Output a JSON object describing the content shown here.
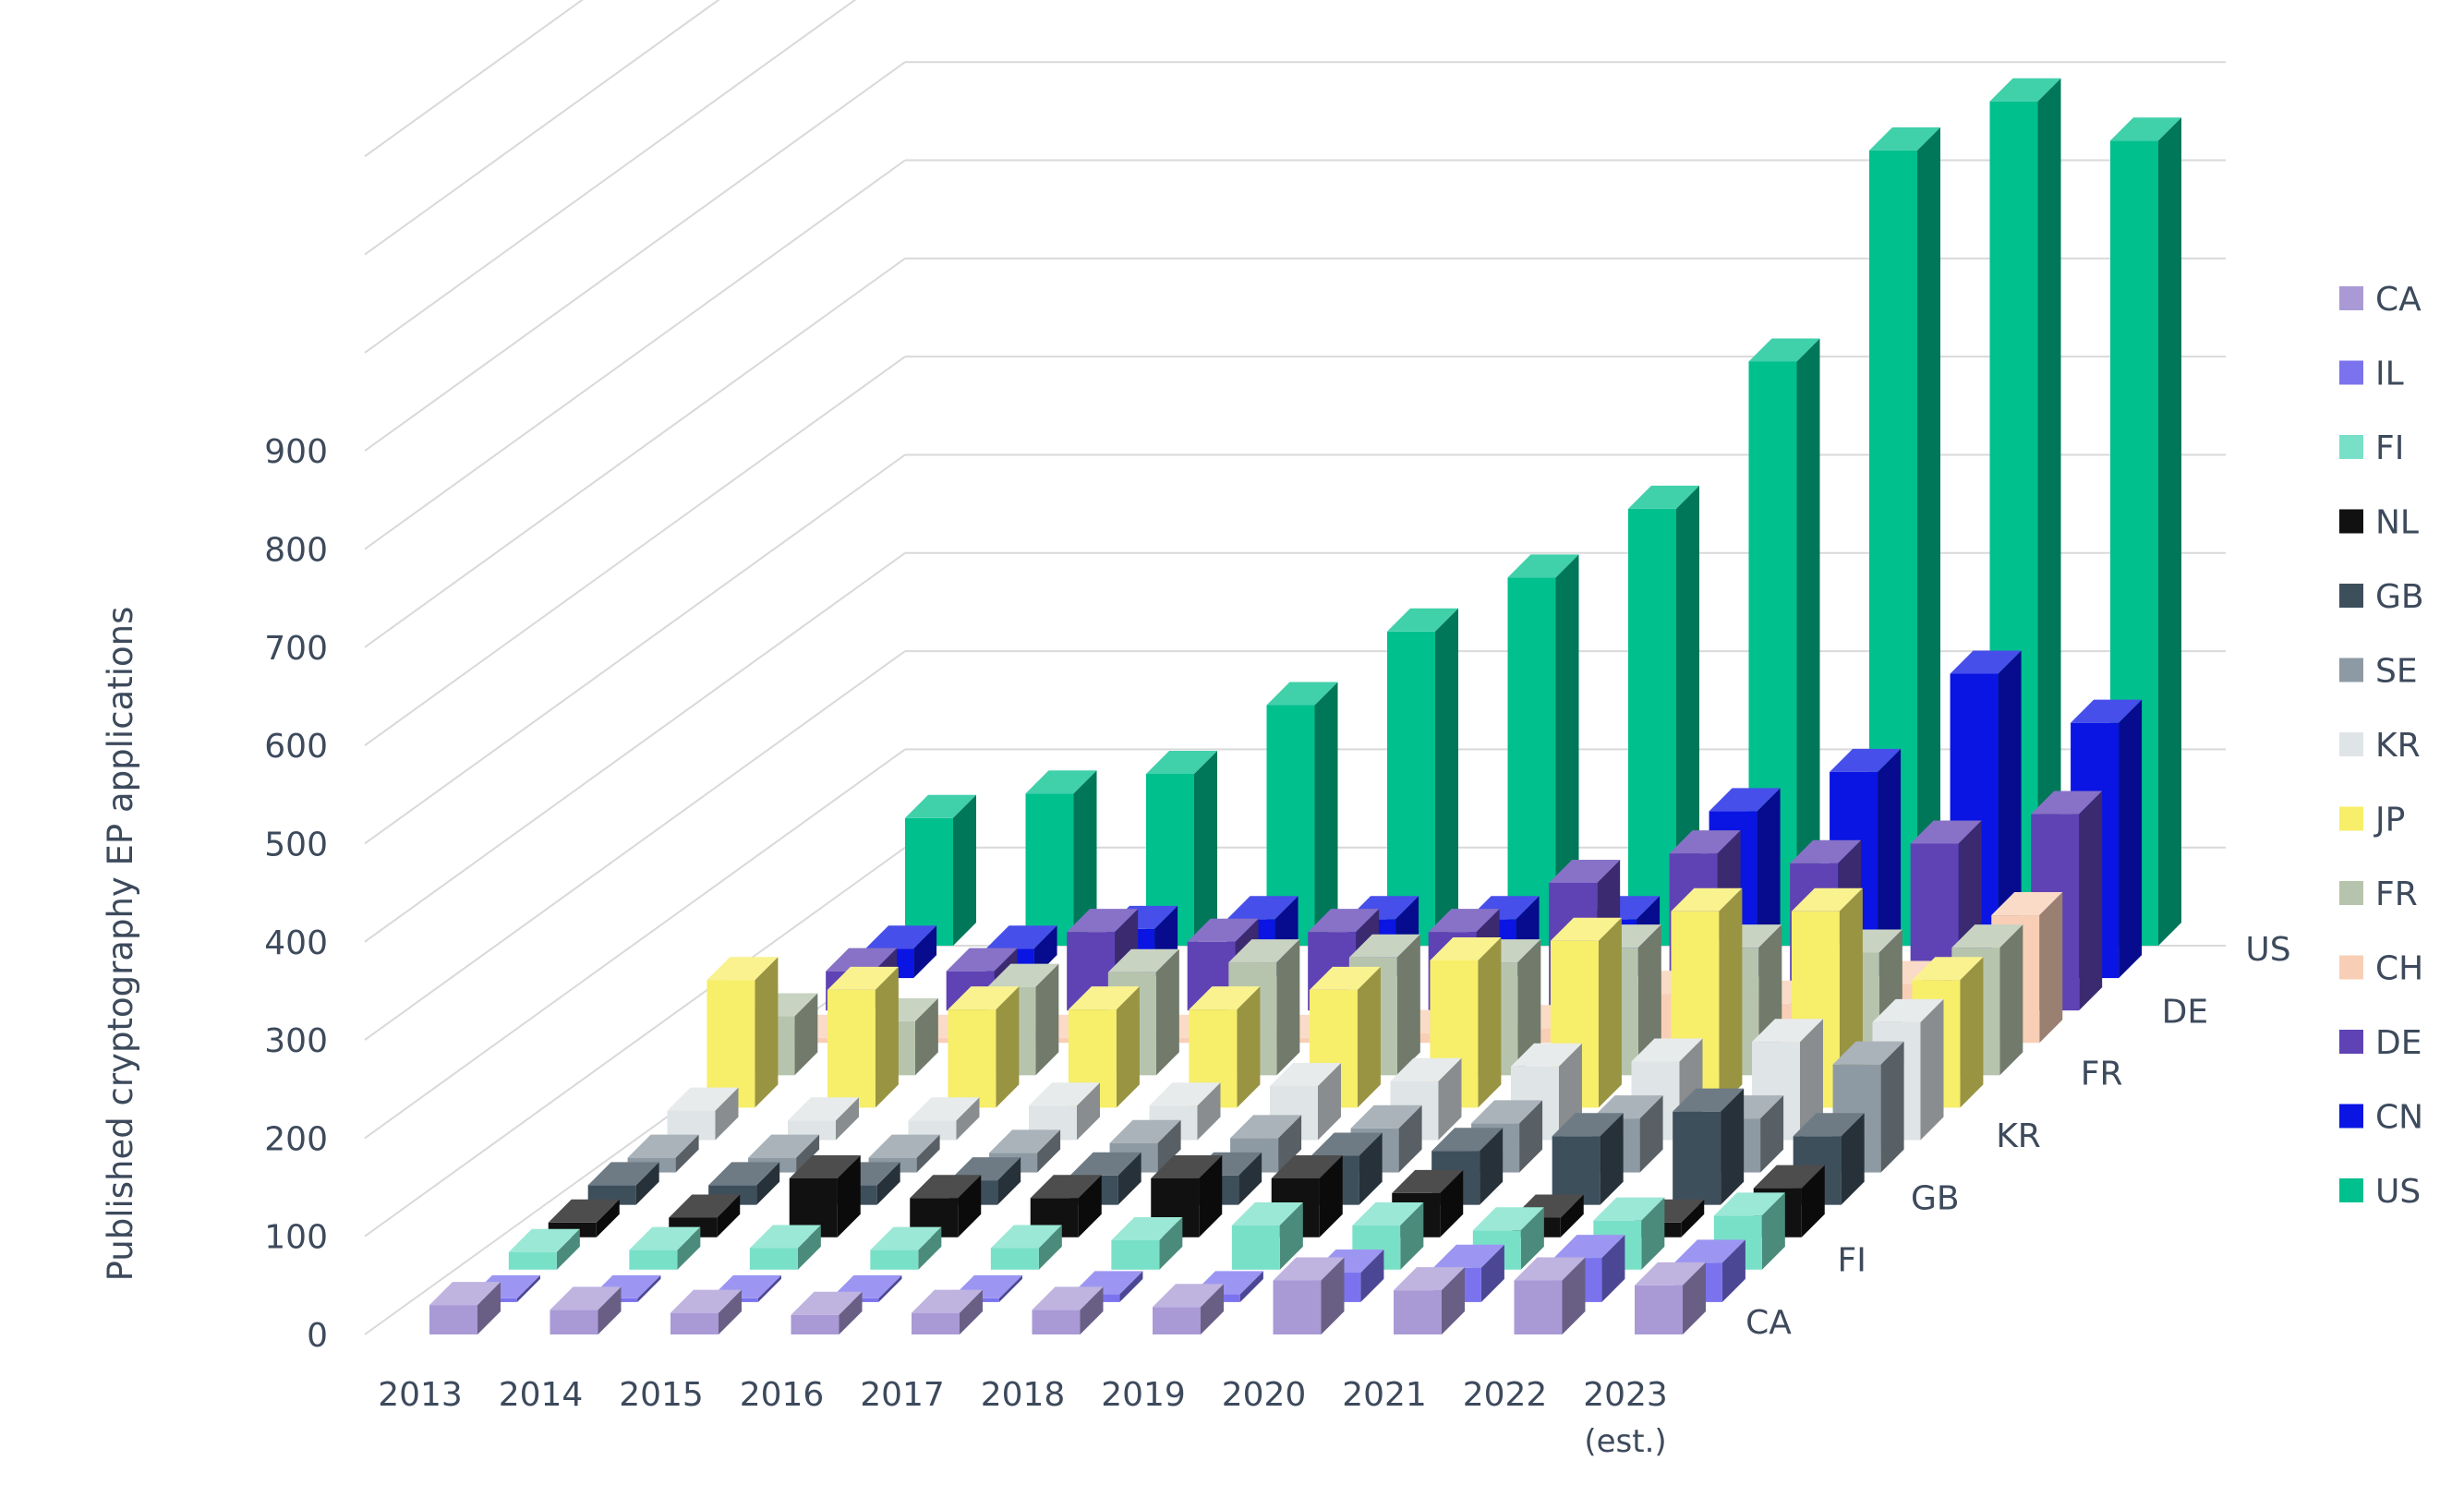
{
  "chart_data": {
    "type": "bar",
    "style": "3d-column",
    "title": "",
    "ylabel": "Published cryptography EP applications",
    "xlabel": "",
    "ylim": [
      0,
      900
    ],
    "y_ticks": [
      "0",
      "100",
      "200",
      "300",
      "400",
      "500",
      "600",
      "700",
      "800",
      "900"
    ],
    "grid": true,
    "legend_position": "right",
    "categories": [
      "2013",
      "2014",
      "2015",
      "2016",
      "2017",
      "2018",
      "2019",
      "2020",
      "2021",
      "2022",
      "2023"
    ],
    "category_sublabels": [
      "",
      "",
      "",
      "",
      "",
      "",
      "",
      "",
      "",
      "",
      "(est.)"
    ],
    "depth_axis_labels": [
      "CA",
      "FI",
      "GB",
      "KR",
      "FR",
      "DE",
      "US"
    ],
    "series": [
      {
        "name": "CA",
        "color": "#a99ad6",
        "values": [
          30,
          25,
          22,
          20,
          22,
          25,
          28,
          55,
          45,
          55,
          50
        ]
      },
      {
        "name": "IL",
        "color": "#7b73ee",
        "values": [
          2,
          2,
          2,
          2,
          2,
          8,
          8,
          30,
          35,
          45,
          40
        ]
      },
      {
        "name": "FI",
        "color": "#79e0c8",
        "values": [
          18,
          20,
          22,
          20,
          22,
          30,
          45,
          45,
          40,
          50,
          55
        ]
      },
      {
        "name": "NL",
        "color": "#111111",
        "values": [
          15,
          20,
          60,
          40,
          40,
          60,
          60,
          45,
          20,
          15,
          50
        ]
      },
      {
        "name": "GB",
        "color": "#3e4f5c",
        "values": [
          20,
          20,
          20,
          25,
          30,
          30,
          50,
          55,
          70,
          95,
          70
        ]
      },
      {
        "name": "SE",
        "color": "#8e9aa3",
        "values": [
          15,
          15,
          15,
          20,
          30,
          35,
          45,
          50,
          55,
          55,
          110
        ]
      },
      {
        "name": "KR",
        "color": "#dfe4e6",
        "values": [
          30,
          20,
          20,
          35,
          35,
          55,
          60,
          75,
          80,
          100,
          120
        ]
      },
      {
        "name": "JP",
        "color": "#f7ee6a",
        "values": [
          130,
          120,
          100,
          100,
          100,
          120,
          150,
          170,
          200,
          200,
          130
        ]
      },
      {
        "name": "FR",
        "color": "#b7c4ad",
        "values": [
          60,
          55,
          90,
          105,
          115,
          120,
          115,
          130,
          130,
          125,
          130
        ]
      },
      {
        "name": "CH",
        "color": "#f8cfb6",
        "values": [
          5,
          5,
          5,
          5,
          5,
          10,
          15,
          50,
          40,
          60,
          130
        ]
      },
      {
        "name": "DE",
        "color": "#5f43b4",
        "values": [
          40,
          40,
          80,
          70,
          80,
          80,
          130,
          160,
          150,
          170,
          200
        ]
      },
      {
        "name": "CN",
        "color": "#0a14e3",
        "values": [
          30,
          30,
          50,
          60,
          60,
          60,
          60,
          170,
          210,
          310,
          260
        ]
      },
      {
        "name": "US",
        "color": "#00c08e",
        "values": [
          130,
          155,
          175,
          245,
          320,
          375,
          445,
          595,
          810,
          860,
          820
        ]
      }
    ]
  }
}
